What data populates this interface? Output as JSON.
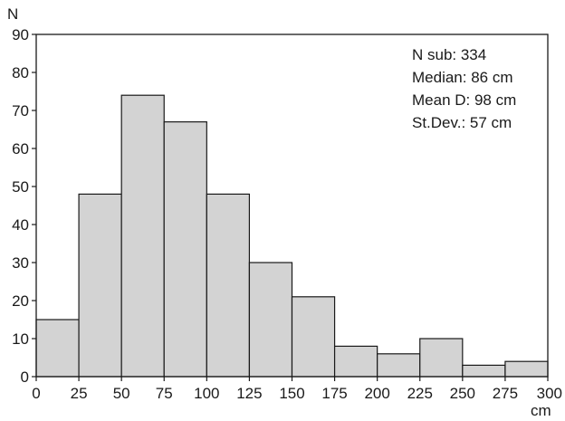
{
  "chart_data": {
    "type": "bar",
    "ylabel": "N",
    "xlabel": "cm",
    "bins": [
      {
        "from": 0,
        "to": 25,
        "count": 15
      },
      {
        "from": 25,
        "to": 50,
        "count": 48
      },
      {
        "from": 50,
        "to": 75,
        "count": 74
      },
      {
        "from": 75,
        "to": 100,
        "count": 67
      },
      {
        "from": 100,
        "to": 125,
        "count": 48
      },
      {
        "from": 125,
        "to": 150,
        "count": 30
      },
      {
        "from": 150,
        "to": 175,
        "count": 21
      },
      {
        "from": 175,
        "to": 200,
        "count": 8
      },
      {
        "from": 200,
        "to": 225,
        "count": 6
      },
      {
        "from": 225,
        "to": 250,
        "count": 10
      },
      {
        "from": 250,
        "to": 275,
        "count": 3
      },
      {
        "from": 275,
        "to": 300,
        "count": 4
      }
    ],
    "xlim": [
      0,
      300
    ],
    "ylim": [
      0,
      90
    ],
    "x_ticks": [
      "0",
      "25",
      "50",
      "75",
      "100",
      "125",
      "150",
      "175",
      "200",
      "225",
      "250",
      "275",
      "300"
    ],
    "y_ticks": [
      "0",
      "10",
      "20",
      "30",
      "40",
      "50",
      "60",
      "70",
      "80",
      "90"
    ],
    "grid": false,
    "bar_color": "#d3d3d3",
    "stats": {
      "n_sub": "N sub: 334",
      "median": "Median: 86 cm",
      "mean": "Mean D: 98 cm",
      "stdev": "St.Dev.: 57 cm"
    }
  }
}
